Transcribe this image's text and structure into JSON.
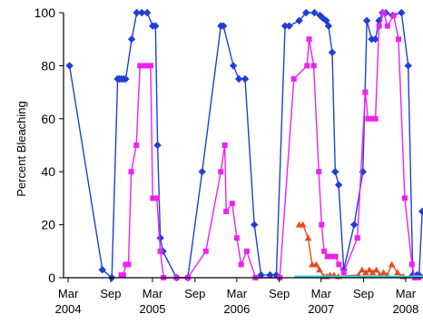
{
  "chart_data": {
    "type": "line",
    "title": "",
    "xlabel": "",
    "ylabel": "Percent Bleaching",
    "ylim": [
      0,
      100
    ],
    "xlim": [
      "2004-02-10",
      "2008-05-15"
    ],
    "grid": false,
    "yticks": [
      0,
      20,
      40,
      60,
      80,
      100
    ],
    "xticks": [
      {
        "date": "2004-03-01",
        "month": "Mar",
        "year": "2004"
      },
      {
        "date": "2004-09-01",
        "month": "Sep",
        "year": ""
      },
      {
        "date": "2005-03-01",
        "month": "Mar",
        "year": "2005"
      },
      {
        "date": "2005-09-01",
        "month": "Sep",
        "year": ""
      },
      {
        "date": "2006-03-01",
        "month": "Mar",
        "year": "2006"
      },
      {
        "date": "2006-09-01",
        "month": "Sep",
        "year": ""
      },
      {
        "date": "2007-03-01",
        "month": "Mar",
        "year": "2007"
      },
      {
        "date": "2007-09-01",
        "month": "Sep",
        "year": ""
      },
      {
        "date": "2008-03-01",
        "month": "Mar",
        "year": "2008"
      }
    ],
    "series": [
      {
        "color": "#1f3fd6",
        "marker": "diamond",
        "points": [
          [
            "2004-03-07",
            80
          ],
          [
            "2004-07-27",
            3
          ],
          [
            "2004-09-06",
            0
          ],
          [
            "2004-10-01",
            75
          ],
          [
            "2004-10-09",
            75
          ],
          [
            "2004-10-17",
            75
          ],
          [
            "2004-10-26",
            75
          ],
          [
            "2004-11-05",
            75
          ],
          [
            "2004-12-01",
            90
          ],
          [
            "2004-12-23",
            100
          ],
          [
            "2005-01-14",
            100
          ],
          [
            "2005-02-06",
            100
          ],
          [
            "2005-03-02",
            95
          ],
          [
            "2005-03-14",
            95
          ],
          [
            "2005-03-23",
            50
          ],
          [
            "2005-04-04",
            15
          ],
          [
            "2005-04-15",
            10
          ],
          [
            "2005-06-13",
            0
          ],
          [
            "2005-08-01",
            0
          ],
          [
            "2005-10-02",
            40
          ],
          [
            "2005-12-22",
            95
          ],
          [
            "2006-01-02",
            95
          ],
          [
            "2006-02-14",
            80
          ],
          [
            "2006-03-10",
            75
          ],
          [
            "2006-04-06",
            75
          ],
          [
            "2006-05-16",
            20
          ],
          [
            "2006-06-14",
            1
          ],
          [
            "2006-07-23",
            1
          ],
          [
            "2006-08-19",
            1
          ],
          [
            "2006-09-26",
            95
          ],
          [
            "2006-10-14",
            95
          ],
          [
            "2006-11-26",
            97
          ],
          [
            "2006-12-26",
            100
          ],
          [
            "2007-01-31",
            100
          ],
          [
            "2007-02-24",
            99
          ],
          [
            "2007-03-08",
            98
          ],
          [
            "2007-03-23",
            97
          ],
          [
            "2007-04-02",
            95
          ],
          [
            "2007-04-18",
            85
          ],
          [
            "2007-05-01",
            40
          ],
          [
            "2007-05-16",
            35
          ],
          [
            "2007-06-07",
            3
          ],
          [
            "2007-07-22",
            20
          ],
          [
            "2007-08-29",
            40
          ],
          [
            "2007-09-15",
            97
          ],
          [
            "2007-10-06",
            90
          ],
          [
            "2007-10-22",
            90
          ],
          [
            "2007-11-07",
            97
          ],
          [
            "2007-11-22",
            100
          ],
          [
            "2007-12-06",
            100
          ],
          [
            "2008-01-04",
            99
          ],
          [
            "2008-02-12",
            100
          ],
          [
            "2008-03-12",
            80
          ],
          [
            "2008-04-01",
            1
          ],
          [
            "2008-04-19",
            1
          ],
          [
            "2008-04-28",
            1
          ],
          [
            "2008-05-12",
            25
          ]
        ]
      },
      {
        "color": "#ee22ee",
        "marker": "square",
        "points": [
          [
            "2004-10-17",
            1
          ],
          [
            "2004-10-26",
            1
          ],
          [
            "2004-11-05",
            5
          ],
          [
            "2004-11-17",
            5
          ],
          [
            "2004-11-29",
            40
          ],
          [
            "2004-12-21",
            50
          ],
          [
            "2005-01-06",
            80
          ],
          [
            "2005-01-29",
            80
          ],
          [
            "2005-02-21",
            80
          ],
          [
            "2005-03-02",
            30
          ],
          [
            "2005-03-20",
            30
          ],
          [
            "2005-04-04",
            10
          ],
          [
            "2005-04-18",
            0
          ],
          [
            "2005-06-13",
            0
          ],
          [
            "2005-08-01",
            0
          ],
          [
            "2005-10-18",
            10
          ],
          [
            "2005-12-22",
            40
          ],
          [
            "2006-01-08",
            50
          ],
          [
            "2006-01-14",
            25
          ],
          [
            "2006-02-09",
            28
          ],
          [
            "2006-03-01",
            15
          ],
          [
            "2006-03-20",
            5
          ],
          [
            "2006-04-13",
            10
          ],
          [
            "2006-05-21",
            0
          ],
          [
            "2006-09-03",
            0
          ],
          [
            "2006-11-03",
            75
          ],
          [
            "2006-12-30",
            80
          ],
          [
            "2007-01-08",
            90
          ],
          [
            "2007-01-28",
            80
          ],
          [
            "2007-02-19",
            40
          ],
          [
            "2007-03-03",
            20
          ],
          [
            "2007-03-14",
            10
          ],
          [
            "2007-03-29",
            8
          ],
          [
            "2007-04-16",
            8
          ],
          [
            "2007-05-02",
            8
          ],
          [
            "2007-05-17",
            5
          ],
          [
            "2007-06-07",
            2
          ],
          [
            "2007-08-05",
            15
          ],
          [
            "2007-09-08",
            70
          ],
          [
            "2007-09-20",
            60
          ],
          [
            "2007-10-08",
            60
          ],
          [
            "2007-10-22",
            60
          ],
          [
            "2007-11-07",
            95
          ],
          [
            "2007-11-27",
            100
          ],
          [
            "2007-12-13",
            95
          ],
          [
            "2008-01-09",
            99
          ],
          [
            "2008-01-30",
            90
          ],
          [
            "2008-02-26",
            30
          ],
          [
            "2008-03-28",
            5
          ],
          [
            "2008-04-10",
            0
          ],
          [
            "2008-04-25",
            0
          ]
        ]
      },
      {
        "color": "#e84a1c",
        "marker": "triangle",
        "points": [
          [
            "2006-11-26",
            20
          ],
          [
            "2006-12-12",
            20
          ],
          [
            "2007-01-04",
            15
          ],
          [
            "2007-01-21",
            5
          ],
          [
            "2007-02-08",
            5
          ],
          [
            "2007-02-22",
            3
          ],
          [
            "2007-03-12",
            0.5
          ],
          [
            "2007-03-26",
            0.5
          ],
          [
            "2007-04-08",
            1
          ],
          [
            "2007-04-26",
            1
          ],
          [
            "2007-05-15",
            0.5
          ],
          [
            "2007-08-10",
            1
          ],
          [
            "2007-08-25",
            3
          ],
          [
            "2007-09-10",
            2
          ],
          [
            "2007-09-26",
            3
          ],
          [
            "2007-10-10",
            2
          ],
          [
            "2007-10-26",
            3
          ],
          [
            "2007-11-10",
            1
          ],
          [
            "2007-11-26",
            2
          ],
          [
            "2007-12-12",
            1
          ],
          [
            "2008-01-01",
            5
          ],
          [
            "2008-01-26",
            2
          ],
          [
            "2008-02-20",
            0.5
          ]
        ]
      },
      {
        "color": "#27d7e3",
        "marker": "none",
        "points": [
          [
            "2006-11-05",
            0.3
          ],
          [
            "2007-02-01",
            0.3
          ],
          [
            "2007-05-01",
            0.3
          ],
          [
            "2007-08-01",
            0.3
          ],
          [
            "2007-11-01",
            0.3
          ],
          [
            "2008-02-01",
            0.3
          ],
          [
            "2008-05-15",
            0.3
          ]
        ]
      }
    ]
  }
}
